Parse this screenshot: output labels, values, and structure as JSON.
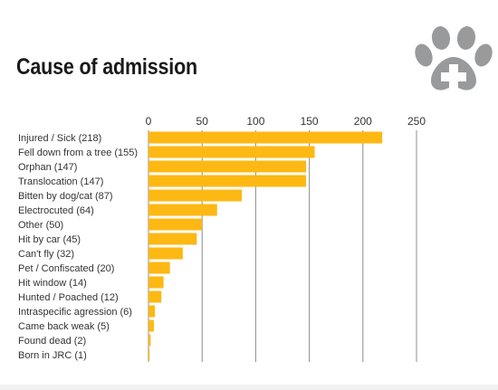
{
  "title": "Cause of admission",
  "colors": {
    "bar": "#FDB813",
    "grid": "#8c8c8c",
    "text": "#333333",
    "logo": "#999a9c"
  },
  "logo_icon": "paw-medical-cross-icon",
  "chart_data": {
    "type": "bar",
    "orientation": "horizontal",
    "title": "",
    "xlabel": "",
    "ylabel": "",
    "xlim": [
      0,
      250
    ],
    "xticks": [
      0,
      50,
      100,
      150,
      200,
      250
    ],
    "grid": true,
    "xaxis_position": "top",
    "categories": [
      "Injured / Sick (218)",
      "Fell down from a tree (155)",
      "Orphan (147)",
      "Translocation (147)",
      "Bitten by dog/cat (87)",
      "Electrocuted (64)",
      "Other (50)",
      "Hit by car (45)",
      "Can't fly (32)",
      "Pet / Confiscated (20)",
      "Hit window (14)",
      "Hunted / Poached (12)",
      "Intraspecific agression (6)",
      "Came back weak (5)",
      "Found dead (2)",
      "Born in JRC (1)"
    ],
    "values": [
      218,
      155,
      147,
      147,
      87,
      64,
      50,
      45,
      32,
      20,
      14,
      12,
      6,
      5,
      2,
      1
    ]
  }
}
